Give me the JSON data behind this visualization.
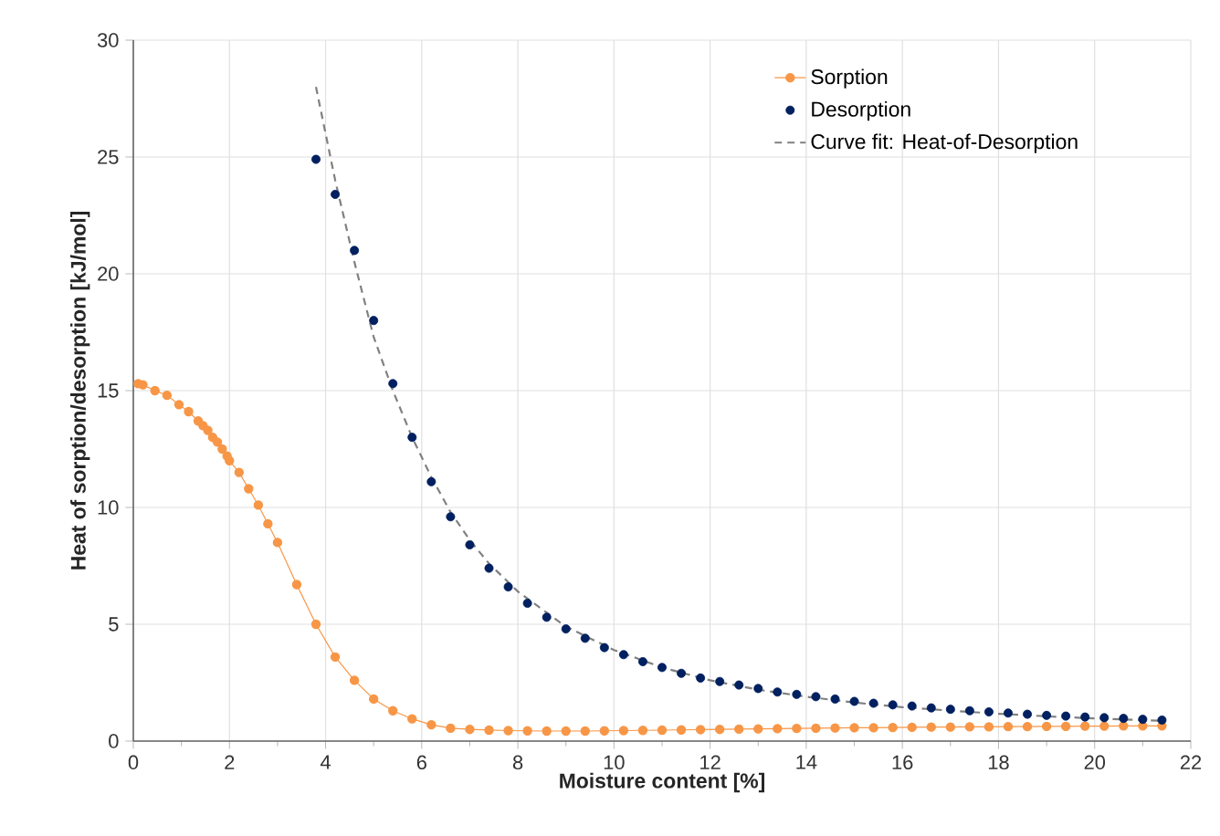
{
  "chart_data": {
    "type": "line",
    "xlabel": "Moisture content [%]",
    "ylabel": "Heat of sorption/desorption [kJ/mol]",
    "xlim": [
      0,
      22
    ],
    "ylim": [
      0,
      30
    ],
    "xticks": [
      0,
      2,
      4,
      6,
      8,
      10,
      12,
      14,
      16,
      18,
      20,
      22
    ],
    "yticks": [
      0,
      5,
      10,
      15,
      20,
      25,
      30
    ],
    "grid": true,
    "legend": "top right",
    "series": [
      {
        "name": "Sorption",
        "marker": "circle",
        "color": "#f79646",
        "x": [
          0.1,
          0.2,
          0.45,
          0.7,
          0.95,
          1.15,
          1.35,
          1.45,
          1.55,
          1.65,
          1.75,
          1.85,
          1.95,
          2.0,
          2.2,
          2.4,
          2.6,
          2.8,
          3.0,
          3.4,
          3.8,
          4.2,
          4.6,
          5.0,
          5.4,
          5.8,
          6.2,
          6.6,
          7.0,
          7.4,
          7.8,
          8.2,
          8.6,
          9.0,
          9.4,
          9.8,
          10.2,
          10.6,
          11.0,
          11.4,
          11.8,
          12.2,
          12.6,
          13.0,
          13.4,
          13.8,
          14.2,
          14.6,
          15.0,
          15.4,
          15.8,
          16.2,
          16.6,
          17.0,
          17.4,
          17.8,
          18.2,
          18.6,
          19.0,
          19.4,
          19.8,
          20.2,
          20.6,
          21.0,
          21.4
        ],
        "values": [
          15.3,
          15.25,
          15.0,
          14.8,
          14.4,
          14.1,
          13.7,
          13.5,
          13.3,
          13.0,
          12.8,
          12.5,
          12.2,
          12.0,
          11.5,
          10.8,
          10.1,
          9.3,
          8.5,
          6.7,
          5.0,
          3.6,
          2.6,
          1.8,
          1.3,
          0.95,
          0.7,
          0.55,
          0.5,
          0.47,
          0.45,
          0.44,
          0.43,
          0.43,
          0.43,
          0.44,
          0.45,
          0.46,
          0.47,
          0.48,
          0.49,
          0.5,
          0.51,
          0.52,
          0.53,
          0.54,
          0.55,
          0.56,
          0.57,
          0.57,
          0.58,
          0.59,
          0.6,
          0.6,
          0.61,
          0.61,
          0.62,
          0.62,
          0.63,
          0.63,
          0.64,
          0.64,
          0.65,
          0.65,
          0.65
        ]
      },
      {
        "name": "Desorption",
        "type": "scatter",
        "marker": "circle",
        "color": "#002060",
        "x": [
          3.8,
          4.2,
          4.6,
          5.0,
          5.4,
          5.8,
          6.2,
          6.6,
          7.0,
          7.4,
          7.8,
          8.2,
          8.6,
          9.0,
          9.4,
          9.8,
          10.2,
          10.6,
          11.0,
          11.4,
          11.8,
          12.2,
          12.6,
          13.0,
          13.4,
          13.8,
          14.2,
          14.6,
          15.0,
          15.4,
          15.8,
          16.2,
          16.6,
          17.0,
          17.4,
          17.8,
          18.2,
          18.6,
          19.0,
          19.4,
          19.8,
          20.2,
          20.6,
          21.0,
          21.4
        ],
        "values": [
          24.9,
          23.4,
          21.0,
          18.0,
          15.3,
          13.0,
          11.1,
          9.6,
          8.4,
          7.4,
          6.6,
          5.9,
          5.3,
          4.8,
          4.4,
          4.0,
          3.7,
          3.4,
          3.15,
          2.9,
          2.7,
          2.55,
          2.4,
          2.25,
          2.1,
          2.0,
          1.9,
          1.8,
          1.7,
          1.62,
          1.55,
          1.5,
          1.42,
          1.36,
          1.3,
          1.25,
          1.2,
          1.15,
          1.1,
          1.07,
          1.03,
          1.0,
          0.97,
          0.93,
          0.9
        ]
      },
      {
        "name": "Curve fit: Heat-of-Desorption",
        "marker": "none",
        "line_style": "dashed",
        "color": "#808080",
        "x": [
          3.8,
          4.2,
          4.6,
          5.0,
          5.4,
          5.8,
          6.2,
          6.6,
          7.0,
          7.4,
          8.0,
          9.0,
          10.0,
          11.0,
          12.0,
          13.0,
          14.0,
          15.0,
          16.0,
          17.0,
          18.0,
          19.0,
          20.0,
          21.4
        ],
        "values": [
          28.0,
          24.0,
          20.5,
          17.3,
          15.0,
          13.0,
          11.3,
          9.8,
          8.6,
          7.6,
          6.4,
          4.9,
          3.9,
          3.15,
          2.6,
          2.2,
          1.9,
          1.65,
          1.45,
          1.3,
          1.17,
          1.06,
          0.97,
          0.87
        ]
      }
    ]
  }
}
